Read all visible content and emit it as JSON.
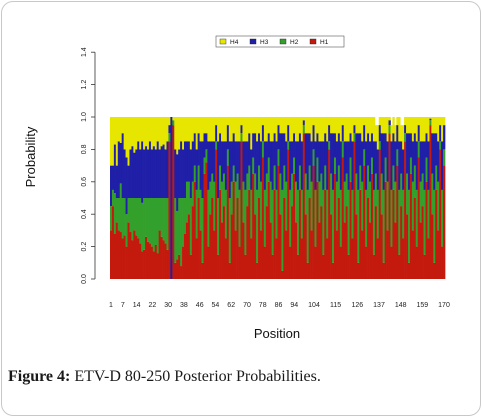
{
  "caption": {
    "label": "Figure 4:",
    "text": "ETV-D 80-250 Posterior Probabilities."
  },
  "chart_data": {
    "type": "bar",
    "stacked": true,
    "xlabel": "Position",
    "ylabel": "Probability",
    "ylim": [
      0,
      1.4
    ],
    "y_ticks": [
      "0.0",
      "0.2",
      "0.4",
      "0.6",
      "0.8",
      "1.0",
      "1.2",
      "1.4"
    ],
    "x_ticks": [
      "1",
      "7",
      "14",
      "22",
      "30",
      "38",
      "46",
      "54",
      "62",
      "70",
      "78",
      "86",
      "94",
      "104",
      "115",
      "126",
      "137",
      "148",
      "159",
      "170"
    ],
    "position_range": [
      1,
      170
    ],
    "grid": false,
    "legend_position": "top-right",
    "legend": [
      "H4",
      "H3",
      "H2",
      "H1"
    ],
    "colors": {
      "H4": "#e6e600",
      "H3": "#1f1fa8",
      "H2": "#33a02c",
      "H1": "#c41a0e"
    },
    "series": [
      {
        "name": "H1",
        "values": [
          0.3,
          0.45,
          0.28,
          0.35,
          0.3,
          0.29,
          0.25,
          0.27,
          0.2,
          0.35,
          0.29,
          0.24,
          0.3,
          0.27,
          0.25,
          0.22,
          0.17,
          0.18,
          0.26,
          0.23,
          0.22,
          0.2,
          0.17,
          0.21,
          0.16,
          0.3,
          0.26,
          0.24,
          0.22,
          0.18,
          0.85,
          0.0,
          0.95,
          0.1,
          0.12,
          0.15,
          0.08,
          0.2,
          0.28,
          0.35,
          0.4,
          0.15,
          0.45,
          0.6,
          0.25,
          0.5,
          0.3,
          0.1,
          0.65,
          0.72,
          0.2,
          0.4,
          0.5,
          0.3,
          0.8,
          0.15,
          0.55,
          0.35,
          0.45,
          0.25,
          0.7,
          0.1,
          0.4,
          0.6,
          0.3,
          0.5,
          0.2,
          0.85,
          0.35,
          0.15,
          0.45,
          0.55,
          0.25,
          0.65,
          0.4,
          0.1,
          0.5,
          0.3,
          0.75,
          0.2,
          0.45,
          0.6,
          0.35,
          0.15,
          0.55,
          0.25,
          0.7,
          0.4,
          0.05,
          0.5,
          0.3,
          0.8,
          0.2,
          0.45,
          0.65,
          0.35,
          0.15,
          0.55,
          0.25,
          0.9,
          0.4,
          0.1,
          0.5,
          0.3,
          0.7,
          0.2,
          0.6,
          0.35,
          0.45,
          0.15,
          0.55,
          0.25,
          0.8,
          0.4,
          0.1,
          0.65,
          0.3,
          0.5,
          0.2,
          0.75,
          0.35,
          0.45,
          0.15,
          0.6,
          0.25,
          0.85,
          0.4,
          0.1,
          0.55,
          0.3,
          0.7,
          0.2,
          0.5,
          0.35,
          0.65,
          0.15,
          0.45,
          0.25,
          0.8,
          0.4,
          0.1,
          0.6,
          0.3,
          0.9,
          0.2,
          0.55,
          0.35,
          0.7,
          0.15,
          0.45,
          0.25,
          0.85,
          0.4,
          0.1,
          0.65,
          0.3,
          0.5,
          0.2,
          0.75,
          0.35,
          0.45,
          0.15,
          0.6,
          0.25,
          0.95,
          0.4,
          0.1,
          0.55,
          0.3,
          0.8,
          0.2,
          0.7
        ]
      },
      {
        "name": "H2",
        "values": [
          0.15,
          0.1,
          0.25,
          0.15,
          0.2,
          0.3,
          0.25,
          0.23,
          0.2,
          0.15,
          0.21,
          0.26,
          0.2,
          0.23,
          0.25,
          0.28,
          0.3,
          0.32,
          0.24,
          0.27,
          0.28,
          0.3,
          0.33,
          0.29,
          0.34,
          0.2,
          0.24,
          0.26,
          0.28,
          0.32,
          0.05,
          0.0,
          0.03,
          0.4,
          0.3,
          0.35,
          0.42,
          0.3,
          0.22,
          0.25,
          0.2,
          0.35,
          0.15,
          0.1,
          0.3,
          0.2,
          0.25,
          0.4,
          0.1,
          0.08,
          0.35,
          0.2,
          0.15,
          0.3,
          0.05,
          0.35,
          0.15,
          0.25,
          0.2,
          0.3,
          0.1,
          0.4,
          0.2,
          0.1,
          0.3,
          0.15,
          0.35,
          0.05,
          0.25,
          0.4,
          0.2,
          0.15,
          0.3,
          0.1,
          0.25,
          0.45,
          0.2,
          0.3,
          0.1,
          0.35,
          0.2,
          0.15,
          0.25,
          0.4,
          0.15,
          0.3,
          0.1,
          0.25,
          0.5,
          0.2,
          0.3,
          0.05,
          0.35,
          0.2,
          0.1,
          0.25,
          0.4,
          0.15,
          0.3,
          0.05,
          0.25,
          0.45,
          0.2,
          0.3,
          0.1,
          0.35,
          0.15,
          0.25,
          0.2,
          0.4,
          0.15,
          0.3,
          0.05,
          0.25,
          0.45,
          0.1,
          0.3,
          0.2,
          0.35,
          0.1,
          0.25,
          0.2,
          0.4,
          0.15,
          0.3,
          0.05,
          0.25,
          0.45,
          0.15,
          0.3,
          0.1,
          0.35,
          0.2,
          0.25,
          0.1,
          0.4,
          0.2,
          0.3,
          0.05,
          0.25,
          0.45,
          0.15,
          0.3,
          0.05,
          0.35,
          0.15,
          0.25,
          0.1,
          0.4,
          0.2,
          0.3,
          0.05,
          0.25,
          0.45,
          0.1,
          0.3,
          0.2,
          0.35,
          0.1,
          0.25,
          0.2,
          0.4,
          0.15,
          0.3,
          0.03,
          0.25,
          0.45,
          0.15,
          0.3,
          0.05,
          0.35,
          0.1
        ]
      },
      {
        "name": "H3",
        "values": [
          0.25,
          0.15,
          0.3,
          0.2,
          0.35,
          0.25,
          0.4,
          0.3,
          0.35,
          0.2,
          0.3,
          0.32,
          0.28,
          0.3,
          0.35,
          0.3,
          0.38,
          0.3,
          0.32,
          0.3,
          0.35,
          0.3,
          0.32,
          0.3,
          0.35,
          0.3,
          0.32,
          0.33,
          0.3,
          0.35,
          0.05,
          1.0,
          0.0,
          0.3,
          0.35,
          0.3,
          0.35,
          0.3,
          0.35,
          0.25,
          0.25,
          0.3,
          0.25,
          0.2,
          0.25,
          0.2,
          0.3,
          0.35,
          0.15,
          0.1,
          0.3,
          0.25,
          0.2,
          0.25,
          0.1,
          0.35,
          0.2,
          0.25,
          0.2,
          0.3,
          0.15,
          0.35,
          0.25,
          0.2,
          0.25,
          0.2,
          0.3,
          0.05,
          0.25,
          0.3,
          0.2,
          0.2,
          0.25,
          0.15,
          0.25,
          0.3,
          0.2,
          0.25,
          0.1,
          0.3,
          0.2,
          0.15,
          0.25,
          0.3,
          0.2,
          0.3,
          0.15,
          0.25,
          0.35,
          0.2,
          0.25,
          0.1,
          0.3,
          0.2,
          0.15,
          0.25,
          0.3,
          0.2,
          0.3,
          0.03,
          0.25,
          0.35,
          0.2,
          0.25,
          0.15,
          0.3,
          0.15,
          0.25,
          0.2,
          0.3,
          0.2,
          0.3,
          0.1,
          0.25,
          0.35,
          0.15,
          0.25,
          0.2,
          0.3,
          0.1,
          0.25,
          0.2,
          0.3,
          0.15,
          0.3,
          0.05,
          0.25,
          0.35,
          0.2,
          0.25,
          0.15,
          0.3,
          0.2,
          0.25,
          0.15,
          0.3,
          0.2,
          0.25,
          0.1,
          0.25,
          0.35,
          0.15,
          0.25,
          0.03,
          0.3,
          0.2,
          0.25,
          0.15,
          0.3,
          0.2,
          0.25,
          0.05,
          0.25,
          0.35,
          0.15,
          0.25,
          0.2,
          0.3,
          0.1,
          0.25,
          0.2,
          0.3,
          0.15,
          0.3,
          0.01,
          0.25,
          0.35,
          0.2,
          0.25,
          0.1,
          0.3,
          0.15
        ]
      },
      {
        "name": "H4",
        "values": [
          0.3,
          0.3,
          0.17,
          0.3,
          0.15,
          0.16,
          0.1,
          0.2,
          0.25,
          0.3,
          0.2,
          0.18,
          0.22,
          0.2,
          0.15,
          0.2,
          0.15,
          0.2,
          0.18,
          0.2,
          0.15,
          0.2,
          0.18,
          0.2,
          0.15,
          0.2,
          0.18,
          0.17,
          0.2,
          0.15,
          0.05,
          0.0,
          0.02,
          0.2,
          0.23,
          0.2,
          0.15,
          0.2,
          0.15,
          0.15,
          0.15,
          0.2,
          0.15,
          0.1,
          0.2,
          0.1,
          0.15,
          0.15,
          0.1,
          0.1,
          0.15,
          0.15,
          0.15,
          0.15,
          0.05,
          0.15,
          0.1,
          0.15,
          0.15,
          0.15,
          0.05,
          0.15,
          0.15,
          0.1,
          0.15,
          0.15,
          0.15,
          0.05,
          0.15,
          0.15,
          0.15,
          0.1,
          0.2,
          0.1,
          0.1,
          0.15,
          0.1,
          0.15,
          0.05,
          0.15,
          0.15,
          0.1,
          0.15,
          0.15,
          0.1,
          0.15,
          0.05,
          0.1,
          0.1,
          0.1,
          0.15,
          0.05,
          0.15,
          0.15,
          0.1,
          0.15,
          0.15,
          0.1,
          0.15,
          0.02,
          0.1,
          0.1,
          0.1,
          0.15,
          0.05,
          0.15,
          0.1,
          0.15,
          0.15,
          0.15,
          0.1,
          0.15,
          0.05,
          0.1,
          0.1,
          0.1,
          0.15,
          0.1,
          0.15,
          0.05,
          0.15,
          0.15,
          0.15,
          0.1,
          0.15,
          0.05,
          0.1,
          0.1,
          0.1,
          0.15,
          0.05,
          0.15,
          0.1,
          0.15,
          0.1,
          0.15,
          0.1,
          0.15,
          0.05,
          0.1,
          0.1,
          0.1,
          0.15,
          0.02,
          0.1,
          0.1,
          0.1,
          0.05,
          0.15,
          0.1,
          0.15,
          0.05,
          0.1,
          0.1,
          0.1,
          0.15,
          0.1,
          0.15,
          0.05,
          0.15,
          0.15,
          0.15,
          0.1,
          0.15,
          0.01,
          0.1,
          0.1,
          0.1,
          0.15,
          0.05,
          0.15,
          0.05
        ]
      }
    ]
  }
}
